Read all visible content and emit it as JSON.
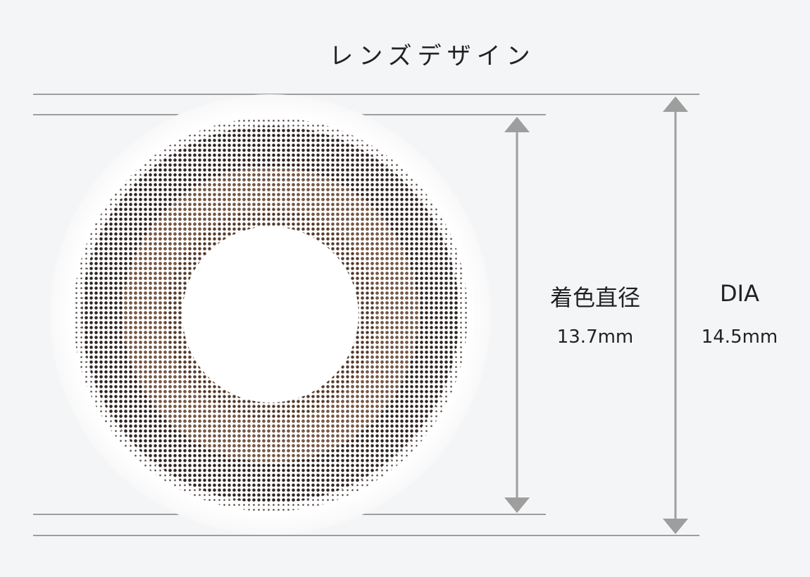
{
  "title": "レンズデザイン",
  "lens": {
    "image": "circle-lens-halftone-brown",
    "colors": {
      "outer_lens": "#ffffff",
      "pattern_dark": "#2f2522",
      "pattern_brown": "#7d5a44",
      "pupil": "#ffffff"
    }
  },
  "measurements": {
    "colored_diameter": {
      "label": "着色直径",
      "value": "13.7mm"
    },
    "dia": {
      "label": "DIA",
      "value": "14.5mm"
    }
  },
  "colors": {
    "background": "#f4f5f7",
    "guide_line": "#9e9e9e",
    "arrow": "#9e9e9e",
    "text": "#222222"
  }
}
